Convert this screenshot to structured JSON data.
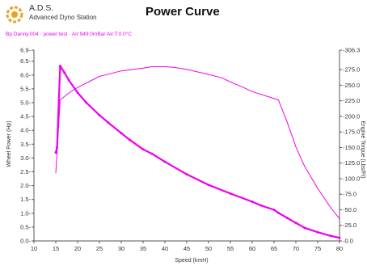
{
  "header": {
    "brand_name": "A.D.S.",
    "brand_subtitle": "Advanced Dyno Station",
    "title": "Power Curve",
    "run_info": "Bp Danny.004 · power test · Air:949.0mBar Air:T:0.0°C"
  },
  "colors": {
    "series": "#ee00ee",
    "axis": "#555555",
    "logo": "#f0a020"
  },
  "chart_data": {
    "type": "line",
    "xlabel": "Speed (kmH)",
    "ylabel": "Wheel Power (Hp)",
    "y2label": "Engine Torque (Lbs/Ft)",
    "xlim": [
      10,
      80
    ],
    "ylim": [
      0,
      6.9
    ],
    "y2lim": [
      0,
      306.3
    ],
    "xticks": [
      10,
      15,
      20,
      25,
      30,
      35,
      40,
      45,
      50,
      55,
      60,
      65,
      70,
      75,
      80
    ],
    "yticks": [
      0.0,
      0.5,
      1.0,
      1.5,
      2.0,
      2.5,
      3.0,
      3.5,
      4.0,
      4.5,
      5.0,
      5.5,
      6.0,
      6.5,
      6.9
    ],
    "y2ticks": [
      0.0,
      25.0,
      50.0,
      75.0,
      100.0,
      125.0,
      150.0,
      175.0,
      200.0,
      225.0,
      250.0,
      275.0,
      306.3
    ],
    "grid": false,
    "series": [
      {
        "axis": "left",
        "x": [
          15,
          15.3,
          16,
          18,
          20,
          25,
          30,
          35,
          37,
          40,
          42,
          45,
          50,
          53,
          55,
          58,
          60,
          62,
          64,
          66,
          68,
          70,
          72,
          75,
          78,
          80
        ],
        "y": [
          2.45,
          3.2,
          5.1,
          5.35,
          5.55,
          5.95,
          6.15,
          6.25,
          6.3,
          6.3,
          6.28,
          6.2,
          6.02,
          5.9,
          5.75,
          5.55,
          5.4,
          5.3,
          5.2,
          5.1,
          4.3,
          3.4,
          2.7,
          1.9,
          1.2,
          0.8
        ]
      },
      {
        "axis": "right",
        "x": [
          15,
          15.3,
          16,
          17,
          18,
          20,
          22,
          25,
          27,
          30,
          32,
          35,
          37,
          40,
          45,
          50,
          55,
          60,
          62,
          65,
          66,
          68,
          70,
          72,
          75,
          78,
          80
        ],
        "y": [
          142,
          150,
          281,
          270,
          258,
          238,
          222,
          202,
          190,
          173,
          162,
          147,
          140,
          127,
          107,
          90,
          76,
          63,
          57,
          50,
          45,
          37,
          29,
          21,
          14,
          8,
          5
        ]
      }
    ]
  }
}
